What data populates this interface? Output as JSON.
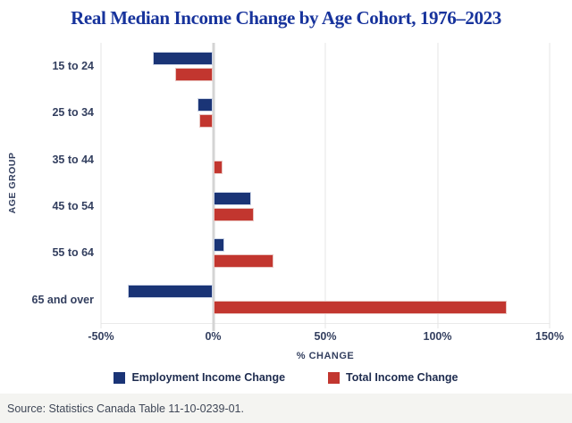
{
  "chart_data": {
    "type": "bar",
    "orientation": "horizontal",
    "title": "Real Median Income Change by Age Cohort, 1976–2023",
    "xlabel": "% CHANGE",
    "ylabel": "AGE GROUP",
    "categories": [
      "15 to 24",
      "25 to 34",
      "35 to 44",
      "45 to 54",
      "55 to 64",
      "65 and over"
    ],
    "series": [
      {
        "name": "Employment Income Change",
        "color": "#1a3476",
        "values": [
          -27,
          -7,
          0,
          17,
          5,
          -38
        ]
      },
      {
        "name": "Total Income Change",
        "color": "#c2362f",
        "values": [
          -17,
          -6,
          4,
          18,
          27,
          131
        ]
      }
    ],
    "xlim": [
      -50,
      150
    ],
    "xticks": [
      -50,
      0,
      50,
      100,
      150
    ],
    "xtick_labels": [
      "-50%",
      "0%",
      "50%",
      "100%",
      "150%"
    ],
    "grid": "vertical",
    "legend_position": "bottom"
  },
  "theme": {
    "title_color": "#17339c",
    "axis_text_color": "#333f5f",
    "legend_text_color": "#1e2c4f",
    "gridline_color": "#e4e4e4",
    "zero_line_color": "#d4d4d4",
    "footer_background": "#f4f4f1"
  },
  "footer": {
    "source": "Source: Statistics Canada Table 11-10-0239-01."
  }
}
